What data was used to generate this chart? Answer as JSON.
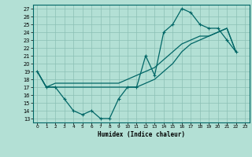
{
  "title": "",
  "xlabel": "Humidex (Indice chaleur)",
  "bg_color": "#b3e0d5",
  "grid_color": "#8bbfb5",
  "line_color": "#006666",
  "xlim": [
    -0.5,
    23.5
  ],
  "ylim": [
    12.5,
    27.5
  ],
  "xticks": [
    0,
    1,
    2,
    3,
    4,
    5,
    6,
    7,
    8,
    9,
    10,
    11,
    12,
    13,
    14,
    15,
    16,
    17,
    18,
    19,
    20,
    21,
    22,
    23
  ],
  "yticks": [
    13,
    14,
    15,
    16,
    17,
    18,
    19,
    20,
    21,
    22,
    23,
    24,
    25,
    26,
    27
  ],
  "line1_x": [
    0,
    1,
    2,
    3,
    4,
    5,
    6,
    7,
    8,
    9,
    10,
    11,
    12,
    13,
    14,
    15,
    16,
    17,
    18,
    19,
    20,
    21,
    22
  ],
  "line1_y": [
    19,
    17,
    17,
    15.5,
    14,
    13.5,
    14,
    13,
    13,
    15.5,
    17,
    17,
    21,
    18.5,
    24,
    25,
    27,
    26.5,
    25,
    24.5,
    24.5,
    23,
    21.5
  ],
  "line2_x": [
    0,
    1,
    2,
    3,
    4,
    5,
    6,
    7,
    8,
    9,
    10,
    11,
    12,
    13,
    14,
    15,
    16,
    17,
    18,
    19,
    20,
    21,
    22
  ],
  "line2_y": [
    19,
    17,
    17.5,
    17.5,
    17.5,
    17.5,
    17.5,
    17.5,
    17.5,
    17.5,
    18,
    18.5,
    19,
    19.5,
    20.5,
    21.5,
    22.5,
    23,
    23.5,
    23.5,
    24,
    24.5,
    21.5
  ],
  "line3_x": [
    0,
    1,
    2,
    3,
    4,
    5,
    6,
    7,
    8,
    9,
    10,
    11,
    12,
    13,
    14,
    15,
    16,
    17,
    18,
    19,
    20,
    21,
    22
  ],
  "line3_y": [
    19,
    17,
    17,
    17,
    17,
    17,
    17,
    17,
    17,
    17,
    17,
    17,
    17.5,
    18,
    19,
    20,
    21.5,
    22.5,
    23,
    23.5,
    24,
    24.5,
    21.5
  ]
}
